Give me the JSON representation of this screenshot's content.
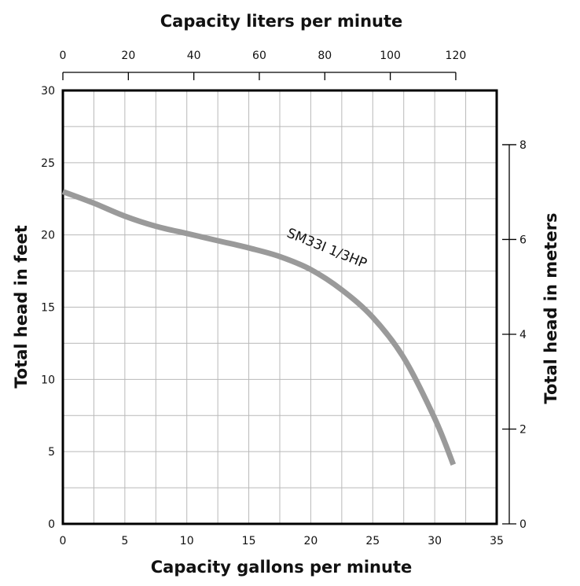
{
  "chart_data": {
    "type": "line",
    "x_label": "Capacity gallons per minute",
    "y_label": "Total head in feet",
    "x2_label": "Capacity liters per minute",
    "y2_label": "Total head in meters",
    "xlim": [
      0,
      35
    ],
    "ylim": [
      0,
      30
    ],
    "x2lim": [
      0,
      132.5
    ],
    "y2lim": [
      0,
      9.144
    ],
    "x_ticks": [
      0,
      5,
      10,
      15,
      20,
      25,
      30,
      35
    ],
    "y_ticks": [
      0,
      5,
      10,
      15,
      20,
      25,
      30
    ],
    "x2_ticks": [
      0,
      20,
      40,
      60,
      80,
      100,
      120
    ],
    "y2_ticks": [
      0,
      2,
      4,
      6,
      8
    ],
    "grid": true,
    "series": [
      {
        "name": "SM33I 1/3HP",
        "color": "#9a9a9a",
        "x": [
          0,
          2.5,
          5,
          7.5,
          10,
          12.5,
          15,
          17.5,
          20,
          22.5,
          25,
          27.5,
          30,
          31.5
        ],
        "y": [
          23,
          22.2,
          21.3,
          20.6,
          20.1,
          19.6,
          19.1,
          18.5,
          17.6,
          16.2,
          14.3,
          11.5,
          7.3,
          4.1
        ]
      }
    ]
  }
}
